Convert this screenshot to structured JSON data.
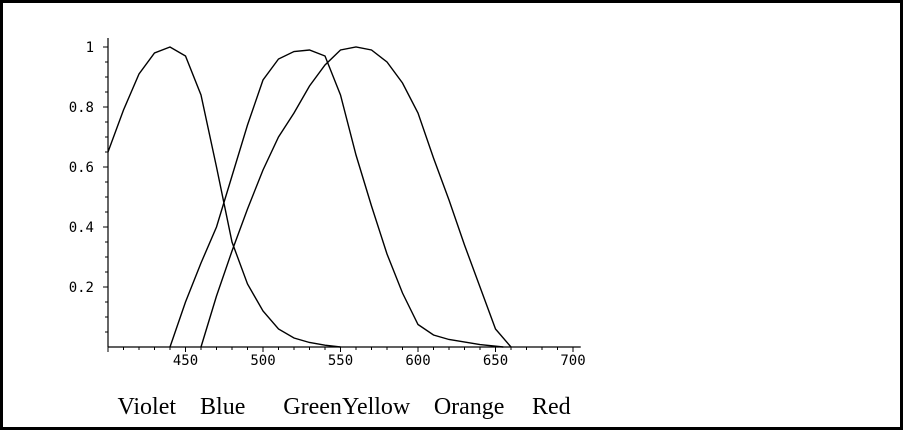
{
  "chart_data": {
    "type": "line",
    "title": "",
    "xlabel": "",
    "ylabel": "",
    "xlim": [
      400,
      705
    ],
    "ylim": [
      0,
      1.03
    ],
    "x_ticks": [
      {
        "value": 450,
        "label": "450"
      },
      {
        "value": 500,
        "label": "500"
      },
      {
        "value": 550,
        "label": "550"
      },
      {
        "value": 600,
        "label": "600"
      },
      {
        "value": 650,
        "label": "650"
      },
      {
        "value": 700,
        "label": "700"
      }
    ],
    "y_ticks": [
      {
        "value": 0.2,
        "label": "0.2"
      },
      {
        "value": 0.4,
        "label": "0.4"
      },
      {
        "value": 0.6,
        "label": "0.6"
      },
      {
        "value": 0.8,
        "label": "0.8"
      },
      {
        "value": 1.0,
        "label": "1"
      }
    ],
    "grid": false,
    "series": [
      {
        "x": [
          400,
          410,
          420,
          430,
          440,
          450,
          460,
          470,
          480,
          490,
          500,
          510,
          520,
          530,
          540,
          550
        ],
        "y": [
          0.65,
          0.79,
          0.91,
          0.98,
          1.0,
          0.97,
          0.84,
          0.6,
          0.35,
          0.21,
          0.12,
          0.06,
          0.03,
          0.015,
          0.006,
          0.0
        ]
      },
      {
        "x": [
          440,
          450,
          460,
          470,
          480,
          490,
          500,
          510,
          520,
          530,
          540,
          550,
          560,
          570,
          580,
          590,
          600,
          610,
          620,
          640,
          655
        ],
        "y": [
          0.0,
          0.15,
          0.28,
          0.4,
          0.57,
          0.74,
          0.89,
          0.96,
          0.985,
          0.99,
          0.97,
          0.84,
          0.64,
          0.47,
          0.31,
          0.18,
          0.075,
          0.04,
          0.025,
          0.008,
          0.0
        ]
      },
      {
        "x": [
          460,
          470,
          480,
          490,
          500,
          510,
          520,
          530,
          540,
          550,
          560,
          570,
          580,
          590,
          600,
          610,
          620,
          630,
          640,
          650,
          660
        ],
        "y": [
          0.0,
          0.17,
          0.32,
          0.46,
          0.59,
          0.7,
          0.78,
          0.87,
          0.94,
          0.99,
          1.0,
          0.99,
          0.95,
          0.88,
          0.78,
          0.63,
          0.49,
          0.34,
          0.2,
          0.06,
          0.0
        ]
      }
    ]
  },
  "color_labels": [
    {
      "text": "Violet",
      "x": 425
    },
    {
      "text": "Blue",
      "x": 474
    },
    {
      "text": "Green",
      "x": 532
    },
    {
      "text": "Yellow",
      "x": 573
    },
    {
      "text": "Orange",
      "x": 633
    },
    {
      "text": "Red",
      "x": 686
    }
  ]
}
